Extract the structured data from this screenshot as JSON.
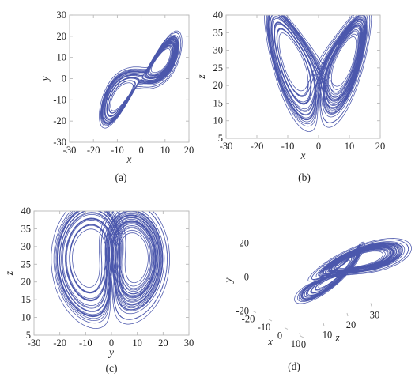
{
  "figure": {
    "captions": [
      "(a)",
      "(b)",
      "(c)",
      "(d)"
    ]
  },
  "chart_data": [
    {
      "type": "line",
      "panel": "(a)",
      "projection": [
        "x",
        "y"
      ],
      "xlabel": "x",
      "ylabel": "y",
      "xlim": [
        -30,
        20
      ],
      "ylim": [
        -30,
        30
      ],
      "xticks": [
        -30,
        -20,
        -10,
        0,
        10,
        20
      ],
      "yticks": [
        -30,
        -20,
        -10,
        0,
        10,
        20,
        30
      ],
      "grid": false,
      "color": "#2c3a9e"
    },
    {
      "type": "line",
      "panel": "(b)",
      "projection": [
        "x",
        "z"
      ],
      "xlabel": "x",
      "ylabel": "z",
      "xlim": [
        -30,
        20
      ],
      "ylim": [
        5,
        40
      ],
      "xticks": [
        -30,
        -20,
        -10,
        0,
        10,
        20
      ],
      "yticks": [
        5,
        10,
        15,
        20,
        25,
        30,
        35,
        40
      ],
      "grid": false,
      "color": "#2c3a9e"
    },
    {
      "type": "line",
      "panel": "(c)",
      "projection": [
        "y",
        "z"
      ],
      "xlabel": "y",
      "ylabel": "z",
      "xlim": [
        -30,
        30
      ],
      "ylim": [
        5,
        40
      ],
      "xticks": [
        -30,
        -20,
        -10,
        0,
        10,
        20,
        30
      ],
      "yticks": [
        5,
        10,
        15,
        20,
        25,
        30,
        35,
        40
      ],
      "grid": false,
      "color": "#2c3a9e"
    },
    {
      "type": "line",
      "panel": "(d)",
      "projection": [
        "x",
        "z",
        "y"
      ],
      "view": "3d",
      "xlabel": "x",
      "ylabel": "y",
      "zlabel": "z",
      "xlim": [
        -20,
        10
      ],
      "ylim": [
        -20,
        20
      ],
      "zlim": [
        0,
        30
      ],
      "xticks": [
        10,
        0,
        -10,
        -20
      ],
      "yticks": [
        -20,
        0,
        20
      ],
      "zticks": [
        0,
        10,
        20,
        30
      ],
      "grid": false,
      "color": "#2c3a9e"
    }
  ]
}
